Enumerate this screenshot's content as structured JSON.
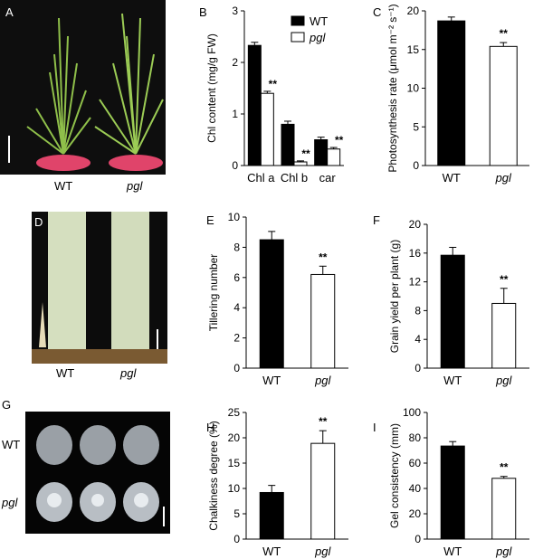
{
  "panels": {
    "A": {
      "letter": "A",
      "labels": [
        "WT",
        "pgl"
      ]
    },
    "B": {
      "letter": "B"
    },
    "C": {
      "letter": "C"
    },
    "D": {
      "letter": "D",
      "labels": [
        "WT",
        "pgl"
      ]
    },
    "E": {
      "letter": "E"
    },
    "F": {
      "letter": "F"
    },
    "G": {
      "letter": "G",
      "labels": [
        "WT",
        "pgl"
      ]
    },
    "H": {
      "letter": "H"
    },
    "I": {
      "letter": "I"
    }
  },
  "colors": {
    "wt": "#000000",
    "pgl": "#ffffff",
    "axis": "#000000"
  },
  "chart_data": [
    {
      "id": "B",
      "type": "bar",
      "categories": [
        "Chl a",
        "Chl b",
        "car"
      ],
      "series": [
        {
          "name": "WT",
          "values": [
            2.33,
            0.8,
            0.5
          ],
          "errors": [
            0.06,
            0.06,
            0.05
          ]
        },
        {
          "name": "pgl",
          "values": [
            1.4,
            0.07,
            0.32
          ],
          "errors": [
            0.04,
            0.02,
            0.03
          ]
        }
      ],
      "significance": [
        "**",
        "**",
        "**"
      ],
      "ylabel": "Chl content (mg/g FW)",
      "ylim": [
        0,
        3
      ],
      "yticks": [
        0,
        1,
        2,
        3
      ],
      "legend": "top-right"
    },
    {
      "id": "C",
      "type": "bar",
      "categories": [
        "WT",
        "pgl"
      ],
      "series": [
        {
          "values": [
            18.7,
            15.4
          ],
          "errors": [
            0.5,
            0.5
          ]
        }
      ],
      "significance": [
        "",
        "**"
      ],
      "ylabel": "Photosynthesis rate (μmol m⁻² s⁻¹)",
      "ylim": [
        0,
        20
      ],
      "yticks": [
        0,
        5,
        10,
        15,
        20
      ]
    },
    {
      "id": "E",
      "type": "bar",
      "categories": [
        "WT",
        "pgl"
      ],
      "series": [
        {
          "values": [
            8.5,
            6.2
          ],
          "errors": [
            0.55,
            0.55
          ]
        }
      ],
      "significance": [
        "",
        "**"
      ],
      "ylabel": "Tillering number",
      "ylim": [
        0,
        10
      ],
      "yticks": [
        0,
        2,
        4,
        6,
        8,
        10
      ]
    },
    {
      "id": "F",
      "type": "bar",
      "categories": [
        "WT",
        "pgl"
      ],
      "series": [
        {
          "values": [
            15.7,
            9.0
          ],
          "errors": [
            1.1,
            2.1
          ]
        }
      ],
      "significance": [
        "",
        "**"
      ],
      "ylabel": "Grain yield per plant (g)",
      "ylim": [
        0,
        20
      ],
      "yticks": [
        0,
        4,
        8,
        12,
        16,
        20
      ]
    },
    {
      "id": "H",
      "type": "bar",
      "categories": [
        "WT",
        "pgl"
      ],
      "series": [
        {
          "values": [
            9.2,
            18.9
          ],
          "errors": [
            1.4,
            2.5
          ]
        }
      ],
      "significance": [
        "",
        "**"
      ],
      "ylabel": "Chalkiness degree (%)",
      "ylim": [
        0,
        25
      ],
      "yticks": [
        0,
        5,
        10,
        15,
        20,
        25
      ]
    },
    {
      "id": "I",
      "type": "bar",
      "categories": [
        "WT",
        "pgl"
      ],
      "series": [
        {
          "values": [
            73.5,
            48
          ],
          "errors": [
            3.5,
            1.5
          ]
        }
      ],
      "significance": [
        "",
        "**"
      ],
      "ylabel": "Gel consistency (mm)",
      "ylim": [
        0,
        100
      ],
      "yticks": [
        0,
        20,
        40,
        60,
        80,
        100
      ]
    }
  ]
}
